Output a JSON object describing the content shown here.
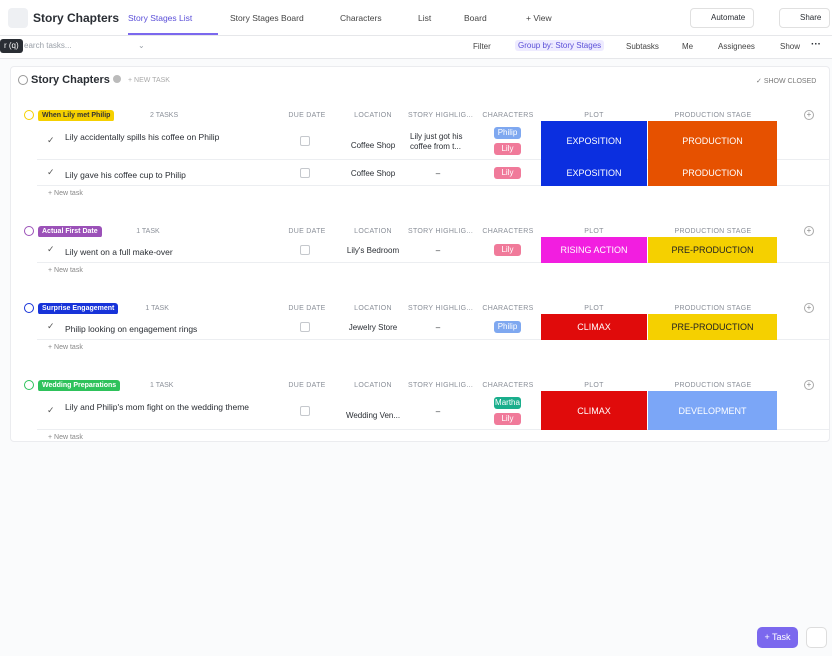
{
  "header": {
    "title": "Story Chapters",
    "tabs": [
      "Story Stages List",
      "Story Stages Board",
      "Characters",
      "List",
      "Board",
      "+ View"
    ],
    "actions": [
      "Automate",
      "Share"
    ]
  },
  "toolbar": {
    "tooltip": "r (q)",
    "search_placeholder": "earch tasks...",
    "filters": [
      "Filter",
      "Group by: Story Stages",
      "Subtasks",
      "Me",
      "Assignees",
      "Show"
    ]
  },
  "list": {
    "title": "Story Chapters",
    "new_task": "+ NEW TASK",
    "show_closed": "SHOW CLOSED"
  },
  "columns": [
    "DUE DATE",
    "LOCATION",
    "STORY HIGHLIG...",
    "CHARACTERS",
    "PLOT",
    "PRODUCTION STAGE"
  ],
  "groups": [
    {
      "name": "When Lily met Philip",
      "color": "#f5d000",
      "text_color": "#333333",
      "count": "2 TASKS",
      "add": "+ New task",
      "tasks": [
        {
          "name": "Lily accidentally spills his coffee on Philip",
          "location": "Coffee Shop",
          "highlight": "Lily just got his coffee from t...",
          "characters": [
            {
              "name": "Philip",
              "color": "#7fa8f0"
            },
            {
              "name": "Lily",
              "color": "#f07a9a"
            }
          ],
          "plot": {
            "label": "EXPOSITION",
            "color": "#0b2fe0"
          },
          "stage": {
            "label": "PRODUCTION",
            "color": "#e65100"
          }
        },
        {
          "name": "Lily gave his coffee cup to Philip",
          "location": "Coffee Shop",
          "highlight": "–",
          "characters": [
            {
              "name": "Lily",
              "color": "#f07a9a"
            }
          ],
          "plot": {
            "label": "EXPOSITION",
            "color": "#0b2fe0"
          },
          "stage": {
            "label": "PRODUCTION",
            "color": "#e65100"
          }
        }
      ]
    },
    {
      "name": "Actual First Date",
      "color": "#9b51b8",
      "text_color": "#ffffff",
      "count": "1 TASK",
      "add": "+ New task",
      "tasks": [
        {
          "name": "Lily went on a full make-over",
          "location": "Lily's Bedroom",
          "highlight": "–",
          "characters": [
            {
              "name": "Lily",
              "color": "#f07a9a"
            }
          ],
          "plot": {
            "label": "RISING ACTION",
            "color": "#f21ee0"
          },
          "stage": {
            "label": "PRE-PRODUCTION",
            "color": "#f5d000"
          }
        }
      ]
    },
    {
      "name": "Surprise Engagement",
      "color": "#1733d9",
      "text_color": "#ffffff",
      "count": "1 TASK",
      "add": "+ New task",
      "tasks": [
        {
          "name": "Philip looking on engagement rings",
          "location": "Jewelry Store",
          "highlight": "–",
          "characters": [
            {
              "name": "Philip",
              "color": "#7fa8f0"
            }
          ],
          "plot": {
            "label": "CLIMAX",
            "color": "#e00b0b"
          },
          "stage": {
            "label": "PRE-PRODUCTION",
            "color": "#f5d000"
          }
        }
      ]
    },
    {
      "name": "Wedding Preparations",
      "color": "#2ec25b",
      "text_color": "#ffffff",
      "count": "1 TASK",
      "add": "+ New task",
      "tasks": [
        {
          "name": "Lily and Philip's mom fight on the wedding theme",
          "location": "Wedding Ven...",
          "highlight": "–",
          "characters": [
            {
              "name": "Martha",
              "color": "#1aae8c"
            },
            {
              "name": "Lily",
              "color": "#f07a9a"
            }
          ],
          "plot": {
            "label": "CLIMAX",
            "color": "#e00b0b"
          },
          "stage": {
            "label": "DEVELOPMENT",
            "color": "#7ba6f7"
          }
        }
      ]
    }
  ],
  "footer": {
    "task_button": "+ Task"
  }
}
